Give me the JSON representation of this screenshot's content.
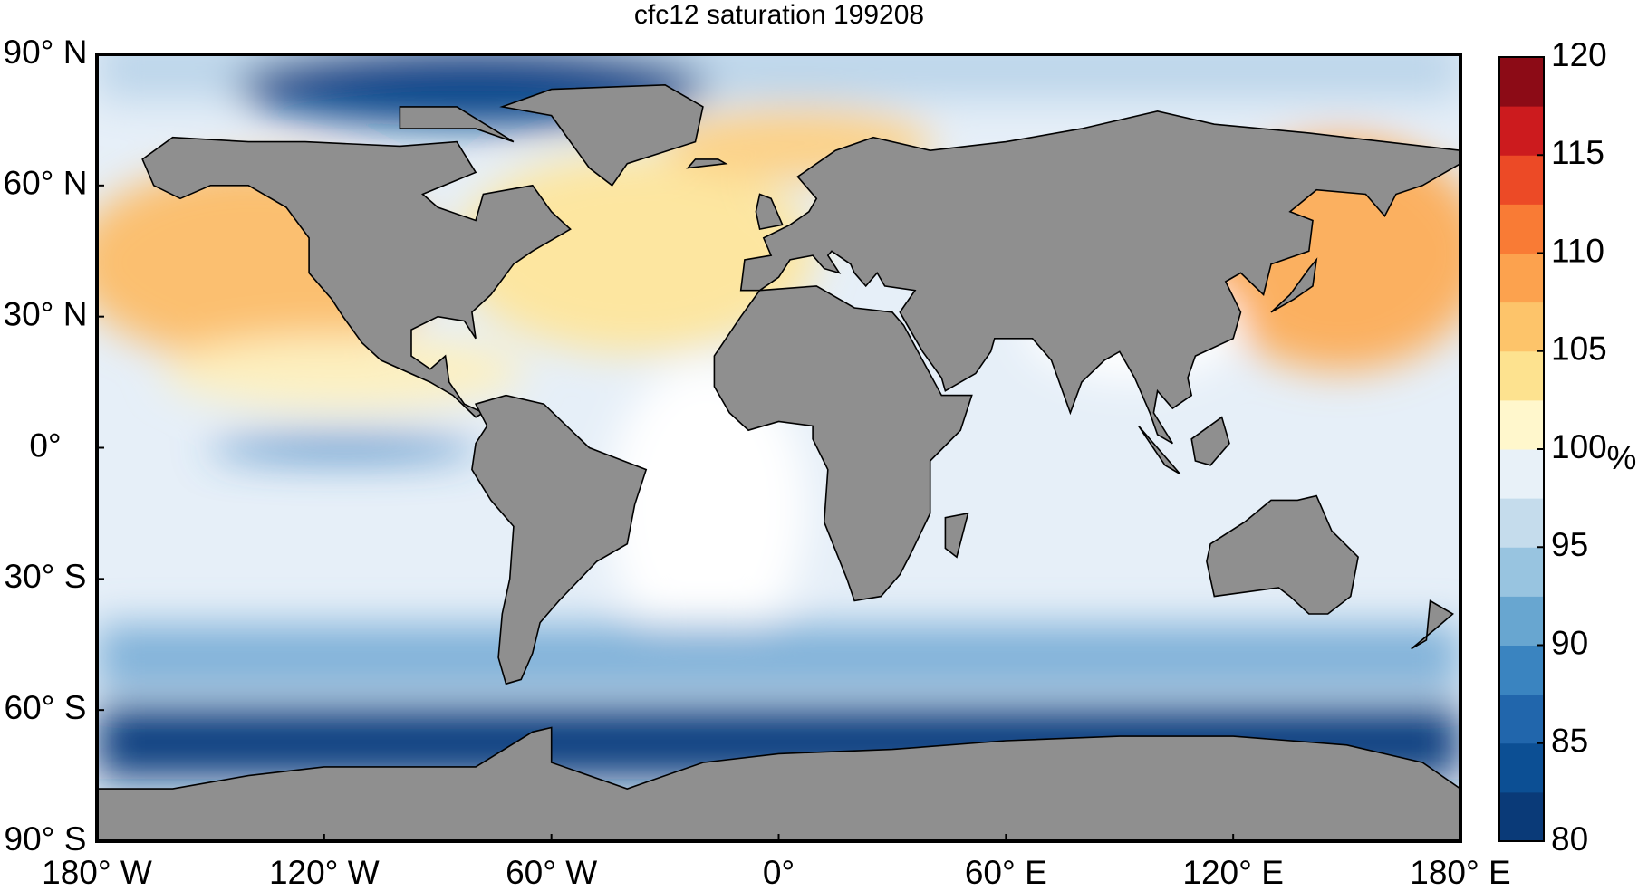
{
  "chart_data": {
    "type": "heatmap",
    "title": "cfc12 saturation 199208",
    "xlim": [
      -180,
      180
    ],
    "ylim": [
      -90,
      90
    ],
    "xticks": [
      {
        "value": -180,
        "label": "180° W"
      },
      {
        "value": -120,
        "label": "120° W"
      },
      {
        "value": -60,
        "label": "60° W"
      },
      {
        "value": 0,
        "label": "0°"
      },
      {
        "value": 60,
        "label": "60° E"
      },
      {
        "value": 120,
        "label": "120° E"
      },
      {
        "value": 180,
        "label": "180° E"
      }
    ],
    "yticks": [
      {
        "value": 90,
        "label": "90° N"
      },
      {
        "value": 60,
        "label": "60° N"
      },
      {
        "value": 30,
        "label": "30° N"
      },
      {
        "value": 0,
        "label": "0°"
      },
      {
        "value": -30,
        "label": "30° S"
      },
      {
        "value": -60,
        "label": "60° S"
      },
      {
        "value": -90,
        "label": "90° S"
      }
    ],
    "colorbar": {
      "label": "%",
      "lim": [
        80,
        120
      ],
      "ticks": [
        80,
        85,
        90,
        95,
        100,
        105,
        110,
        115,
        120
      ],
      "colors": [
        "#0a3a78",
        "#0c4f94",
        "#2166ac",
        "#3a84c0",
        "#68a6d0",
        "#98c4e0",
        "#c5dcec",
        "#e8f1f8",
        "#fff7cc",
        "#fde28f",
        "#fdc46a",
        "#fca24e",
        "#f97b35",
        "#ec4a26",
        "#cc1b1e",
        "#8c0b16"
      ]
    }
  }
}
